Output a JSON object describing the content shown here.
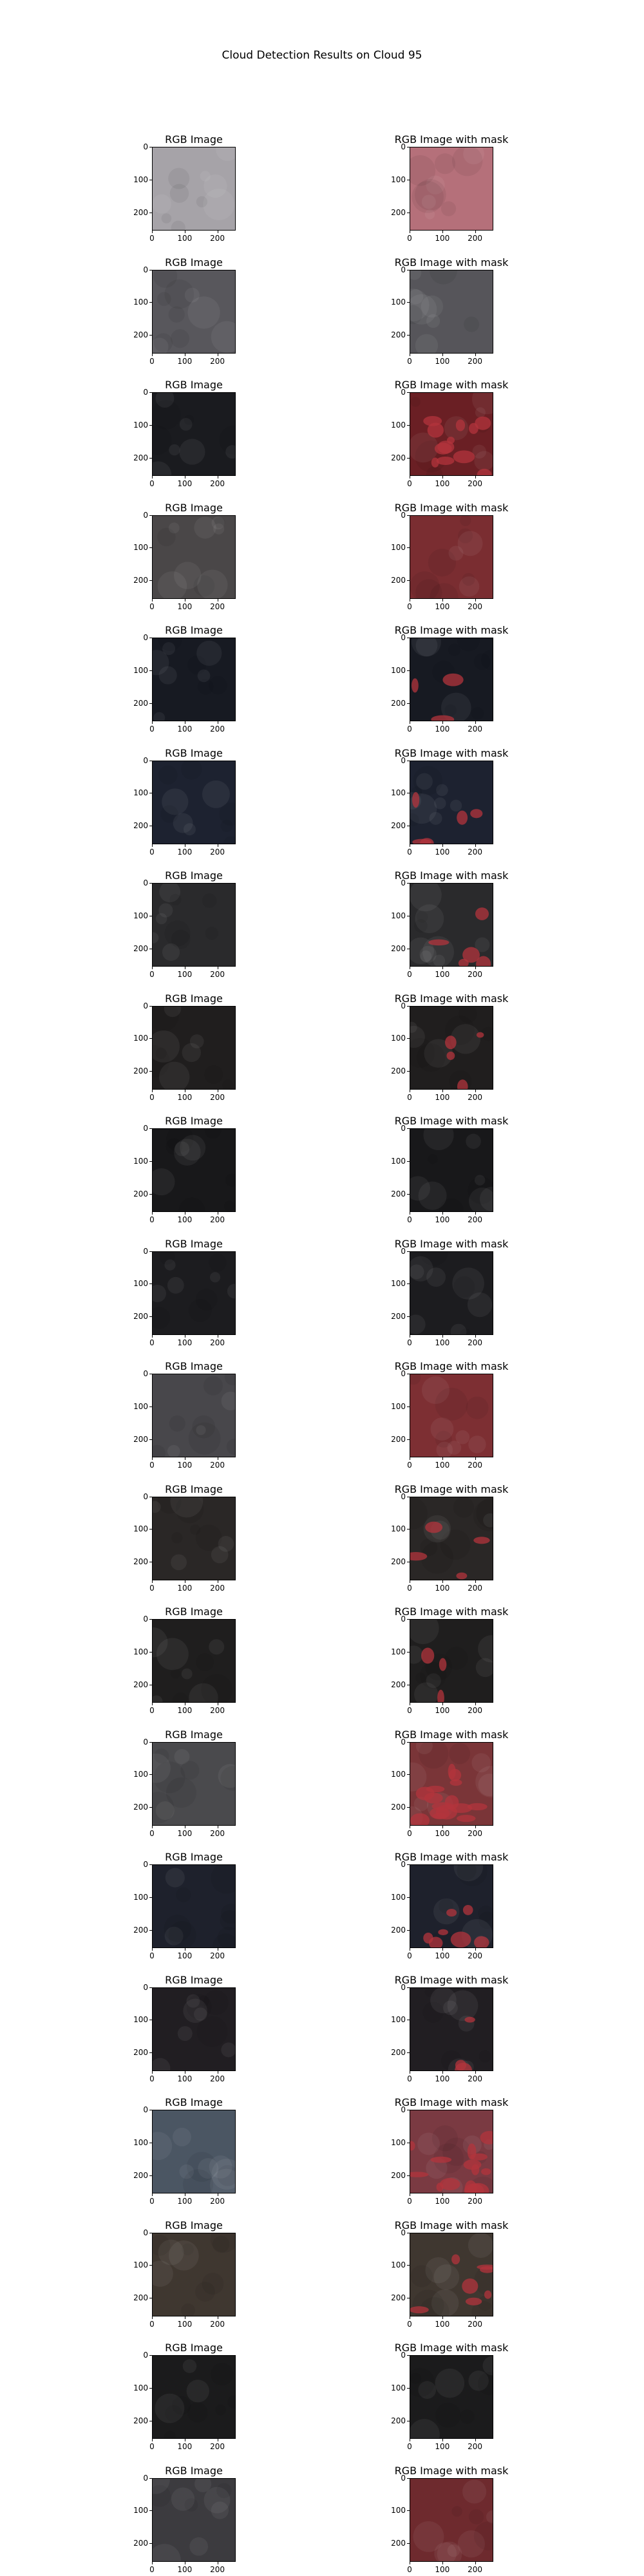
{
  "figure": {
    "title": "Cloud Detection Results on Cloud 95"
  },
  "columns": {
    "left_title": "RGB Image",
    "right_title": "RGB Image with mask"
  },
  "axis": {
    "x_ticks": [
      "0",
      "100",
      "200"
    ],
    "y_ticks": [
      "0",
      "100",
      "200"
    ]
  },
  "rows": [
    {
      "rgb_color": "#a6a3a8",
      "masked_color": "#b5707a",
      "mask_coverage": 1.0
    },
    {
      "rgb_color": "#58575c",
      "masked_color": "#56555a",
      "mask_coverage": 0.0
    },
    {
      "rgb_color": "#1a1b1f",
      "masked_color": "#6a1f24",
      "mask_coverage": 0.65
    },
    {
      "rgb_color": "#4a4748",
      "masked_color": "#7a2d31",
      "mask_coverage": 1.0
    },
    {
      "rgb_color": "#171a22",
      "masked_color": "#171a22",
      "mask_coverage": 0.15
    },
    {
      "rgb_color": "#1d2230",
      "masked_color": "#1d2230",
      "mask_coverage": 0.25
    },
    {
      "rgb_color": "#2a2a2c",
      "masked_color": "#2a2a2c",
      "mask_coverage": 0.3
    },
    {
      "rgb_color": "#201e1e",
      "masked_color": "#201e1e",
      "mask_coverage": 0.2
    },
    {
      "rgb_color": "#18181a",
      "masked_color": "#18181a",
      "mask_coverage": 0.0
    },
    {
      "rgb_color": "#1c1c1f",
      "masked_color": "#1c1c1f",
      "mask_coverage": 0.0
    },
    {
      "rgb_color": "#48474b",
      "masked_color": "#7d2f33",
      "mask_coverage": 1.0
    },
    {
      "rgb_color": "#2a2726",
      "masked_color": "#2a2726",
      "mask_coverage": 0.2
    },
    {
      "rgb_color": "#1f1e1e",
      "masked_color": "#1f1e1e",
      "mask_coverage": 0.1
    },
    {
      "rgb_color": "#4a4a4d",
      "masked_color": "#7a3538",
      "mask_coverage": 0.85
    },
    {
      "rgb_color": "#1e212c",
      "masked_color": "#1e212c",
      "mask_coverage": 0.4
    },
    {
      "rgb_color": "#211e22",
      "masked_color": "#211e22",
      "mask_coverage": 0.05
    },
    {
      "rgb_color": "#4b5663",
      "masked_color": "#7a3a42",
      "mask_coverage": 0.8
    },
    {
      "rgb_color": "#3f3730",
      "masked_color": "#3f3730",
      "mask_coverage": 0.4
    },
    {
      "rgb_color": "#1b1b1c",
      "masked_color": "#1b1b1c",
      "mask_coverage": 0.0
    },
    {
      "rgb_color": "#3c3b3f",
      "masked_color": "#6e2a2e",
      "mask_coverage": 1.0
    }
  ]
}
